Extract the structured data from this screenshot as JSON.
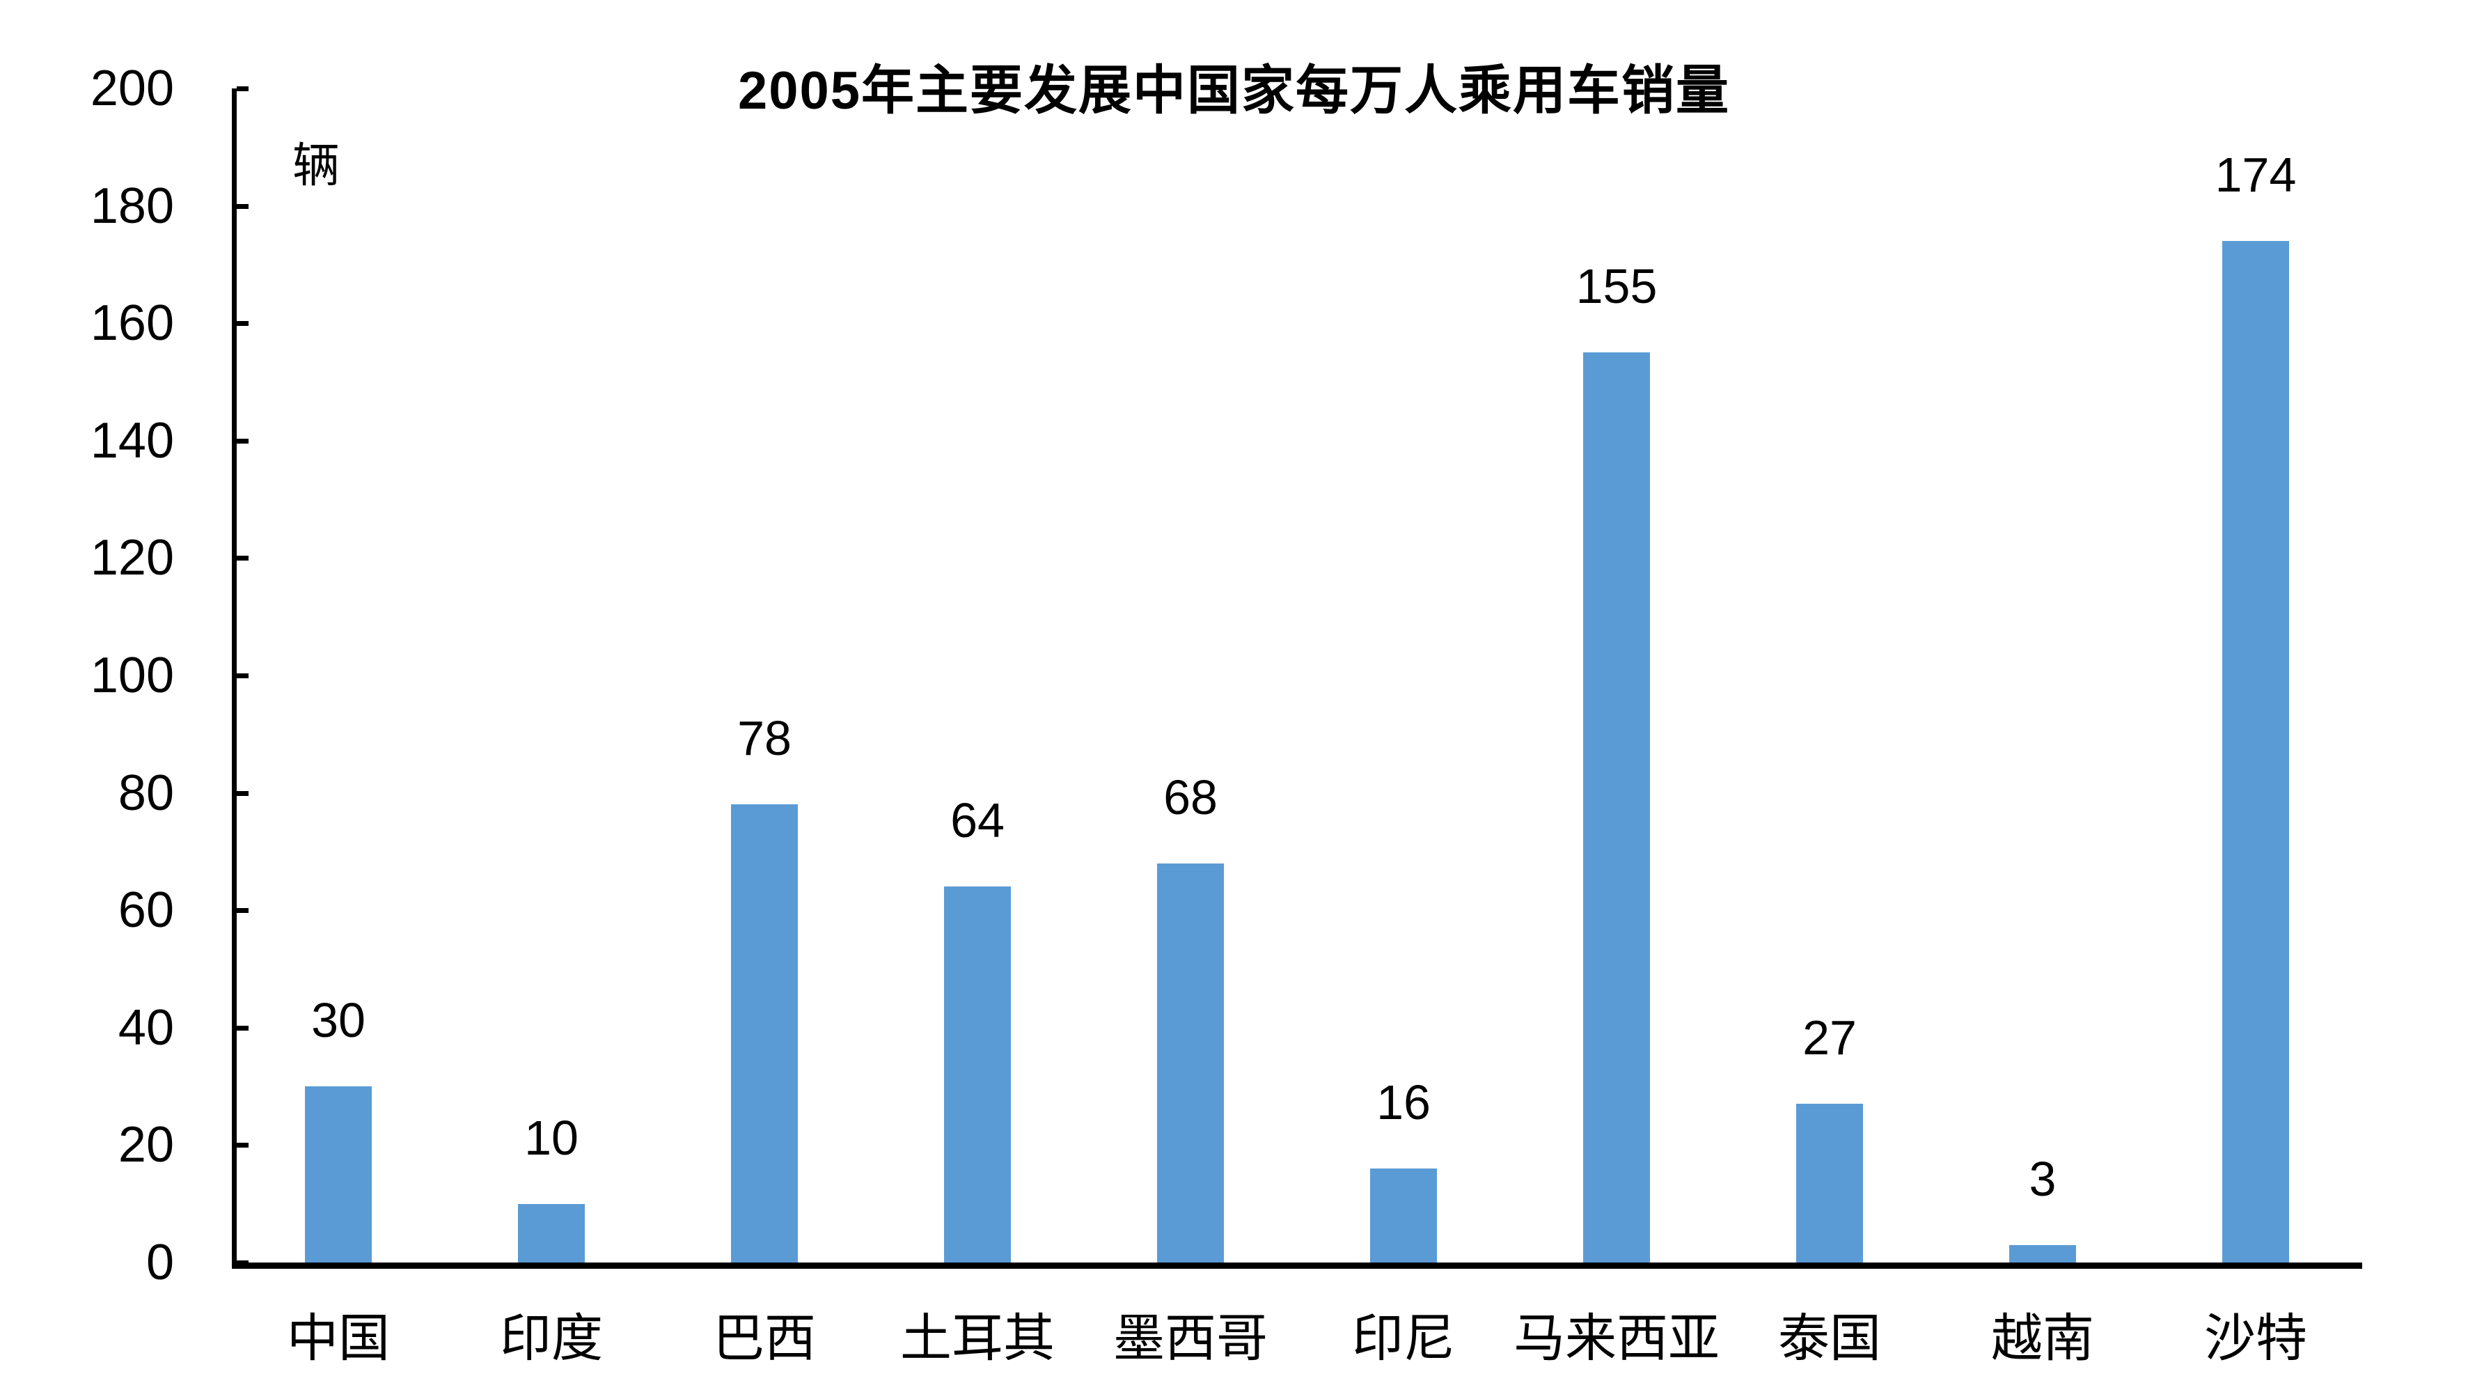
{
  "colors": {
    "bar": "#5B9BD5",
    "axis": "#000000",
    "text": "#000000",
    "background": "#FFFFFF"
  },
  "chart_data": {
    "type": "bar",
    "title": "2005年主要发展中国家每万人乘用车销量",
    "ylabel": "辆",
    "xlabel": "",
    "categories": [
      "中国",
      "印度",
      "巴西",
      "土耳其",
      "墨西哥",
      "印尼",
      "马来西亚",
      "泰国",
      "越南",
      "沙特"
    ],
    "values": [
      30,
      10,
      78,
      64,
      68,
      16,
      155,
      27,
      3,
      174
    ],
    "ylim": [
      0,
      200
    ],
    "ytick_step": 20,
    "yticks": [
      0,
      20,
      40,
      60,
      80,
      100,
      120,
      140,
      160,
      180,
      200
    ],
    "grid": false,
    "legend_position": "none",
    "bar_value_labels_shown": true,
    "tick_direction": "inside"
  }
}
